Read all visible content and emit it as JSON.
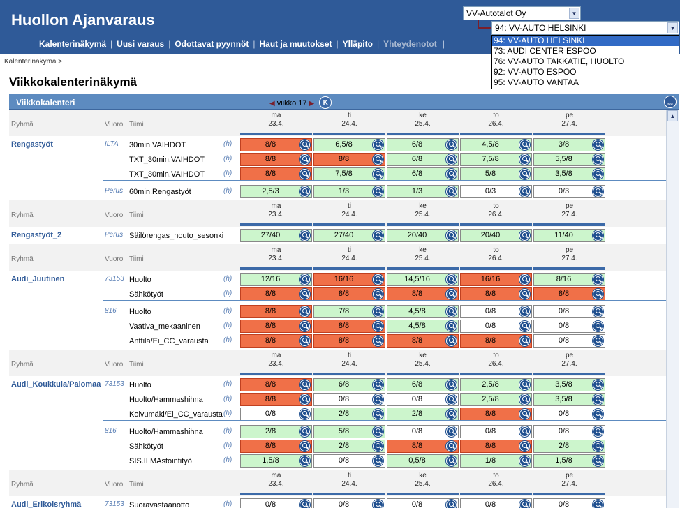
{
  "app": {
    "title": "Huollon Ajanvaraus"
  },
  "nav": {
    "items": [
      {
        "label": "Kalenterinäkymä",
        "dim": false
      },
      {
        "label": "Uusi varaus",
        "dim": false
      },
      {
        "label": "Odottavat pyynnöt",
        "dim": false
      },
      {
        "label": "Haut ja muutokset",
        "dim": false
      },
      {
        "label": "Ylläpito",
        "dim": false
      },
      {
        "label": "Yhteydenotot",
        "dim": true
      }
    ]
  },
  "company_select": {
    "value": "VV-Autotalot Oy"
  },
  "location_select": {
    "value": "94: VV-AUTO HELSINKI",
    "options": [
      "94: VV-AUTO HELSINKI",
      "73: AUDI CENTER ESPOO",
      "76: VV-AUTO TAKKATIE, HUOLTO",
      "92: VV-AUTO ESPOO",
      "95: VV-AUTO VANTAA"
    ]
  },
  "breadcrumb": "Kalenterinäkymä >",
  "page_title": "Viikkokalenterinäkymä",
  "calendar": {
    "title": "Viikkokalenteri",
    "week_label": "viikko 17",
    "k_button": "K"
  },
  "header_labels": {
    "group": "Ryhmä",
    "shift": "Vuoro",
    "team": "Tiimi"
  },
  "days": [
    {
      "day": "ma",
      "date": "23.4."
    },
    {
      "day": "ti",
      "date": "24.4."
    },
    {
      "day": "ke",
      "date": "25.4."
    },
    {
      "day": "to",
      "date": "26.4."
    },
    {
      "day": "pe",
      "date": "27.4."
    }
  ],
  "sections": [
    {
      "group": "Rengastyöt",
      "blocks": [
        {
          "shift": "ILTA",
          "rows": [
            {
              "team": "30min.VAIHDOT",
              "h": "(h)",
              "cells": [
                [
                  "8/8",
                  "r"
                ],
                [
                  "6,5/8",
                  "g"
                ],
                [
                  "6/8",
                  "g"
                ],
                [
                  "4,5/8",
                  "g"
                ],
                [
                  "3/8",
                  "g"
                ]
              ]
            },
            {
              "team": "TXT_30min.VAIHDOT",
              "h": "(h)",
              "cells": [
                [
                  "8/8",
                  "r"
                ],
                [
                  "8/8",
                  "r"
                ],
                [
                  "6/8",
                  "g"
                ],
                [
                  "7,5/8",
                  "g"
                ],
                [
                  "5,5/8",
                  "g"
                ]
              ]
            },
            {
              "team": "TXT_30min.VAIHDOT",
              "h": "(h)",
              "cells": [
                [
                  "8/8",
                  "r"
                ],
                [
                  "7,5/8",
                  "g"
                ],
                [
                  "6/8",
                  "g"
                ],
                [
                  "5/8",
                  "g"
                ],
                [
                  "3,5/8",
                  "g"
                ]
              ]
            }
          ]
        },
        {
          "shift": "Perus",
          "rows": [
            {
              "team": "60min.Rengastyöt",
              "h": "(h)",
              "cells": [
                [
                  "2,5/3",
                  "g"
                ],
                [
                  "1/3",
                  "g"
                ],
                [
                  "1/3",
                  "g"
                ],
                [
                  "0/3",
                  "w"
                ],
                [
                  "0/3",
                  "w"
                ]
              ]
            }
          ]
        }
      ]
    },
    {
      "group": "Rengastyöt_2",
      "blocks": [
        {
          "shift": "Perus",
          "rows": [
            {
              "team": "Säilörengas_nouto_sesonki",
              "h": "",
              "cells": [
                [
                  "27/40",
                  "g"
                ],
                [
                  "27/40",
                  "g"
                ],
                [
                  "20/40",
                  "g"
                ],
                [
                  "20/40",
                  "g"
                ],
                [
                  "11/40",
                  "g"
                ]
              ]
            }
          ]
        }
      ]
    },
    {
      "group": "Audi_Juutinen",
      "blocks": [
        {
          "shift": "73153",
          "rows": [
            {
              "team": "Huolto",
              "h": "(h)",
              "cells": [
                [
                  "12/16",
                  "g"
                ],
                [
                  "16/16",
                  "r"
                ],
                [
                  "14,5/16",
                  "g"
                ],
                [
                  "16/16",
                  "r"
                ],
                [
                  "8/16",
                  "g"
                ]
              ]
            },
            {
              "team": "Sähkötyöt",
              "h": "(h)",
              "cells": [
                [
                  "8/8",
                  "r"
                ],
                [
                  "8/8",
                  "r"
                ],
                [
                  "8/8",
                  "r"
                ],
                [
                  "8/8",
                  "r"
                ],
                [
                  "8/8",
                  "r"
                ]
              ]
            }
          ]
        },
        {
          "shift": "816",
          "rows": [
            {
              "team": "Huolto",
              "h": "(h)",
              "cells": [
                [
                  "8/8",
                  "r"
                ],
                [
                  "7/8",
                  "g"
                ],
                [
                  "4,5/8",
                  "g"
                ],
                [
                  "0/8",
                  "w"
                ],
                [
                  "0/8",
                  "w"
                ]
              ]
            },
            {
              "team": "Vaativa_mekaaninen",
              "h": "(h)",
              "cells": [
                [
                  "8/8",
                  "r"
                ],
                [
                  "8/8",
                  "r"
                ],
                [
                  "4,5/8",
                  "g"
                ],
                [
                  "0/8",
                  "w"
                ],
                [
                  "0/8",
                  "w"
                ]
              ]
            },
            {
              "team": "Anttila/Ei_CC_varausta",
              "h": "(h)",
              "cells": [
                [
                  "8/8",
                  "r"
                ],
                [
                  "8/8",
                  "r"
                ],
                [
                  "8/8",
                  "r"
                ],
                [
                  "8/8",
                  "r"
                ],
                [
                  "0/8",
                  "w"
                ]
              ]
            }
          ]
        }
      ]
    },
    {
      "group": "Audi_Koukkula/Palomaa",
      "blocks": [
        {
          "shift": "73153",
          "rows": [
            {
              "team": "Huolto",
              "h": "(h)",
              "cells": [
                [
                  "8/8",
                  "r"
                ],
                [
                  "6/8",
                  "g"
                ],
                [
                  "6/8",
                  "g"
                ],
                [
                  "2,5/8",
                  "g"
                ],
                [
                  "3,5/8",
                  "g"
                ]
              ]
            },
            {
              "team": "Huolto/Hammashihna",
              "h": "(h)",
              "cells": [
                [
                  "8/8",
                  "r"
                ],
                [
                  "0/8",
                  "w"
                ],
                [
                  "0/8",
                  "w"
                ],
                [
                  "2,5/8",
                  "g"
                ],
                [
                  "3,5/8",
                  "g"
                ]
              ]
            },
            {
              "team": "Koivumäki/Ei_CC_varausta",
              "h": "(h)",
              "cells": [
                [
                  "0/8",
                  "w"
                ],
                [
                  "2/8",
                  "g"
                ],
                [
                  "2/8",
                  "g"
                ],
                [
                  "8/8",
                  "r"
                ],
                [
                  "0/8",
                  "w"
                ]
              ]
            }
          ]
        },
        {
          "shift": "816",
          "rows": [
            {
              "team": "Huolto/Hammashihna",
              "h": "(h)",
              "cells": [
                [
                  "2/8",
                  "g"
                ],
                [
                  "5/8",
                  "g"
                ],
                [
                  "0/8",
                  "w"
                ],
                [
                  "0/8",
                  "w"
                ],
                [
                  "0/8",
                  "w"
                ]
              ]
            },
            {
              "team": "Sähkötyöt",
              "h": "(h)",
              "cells": [
                [
                  "8/8",
                  "r"
                ],
                [
                  "2/8",
                  "g"
                ],
                [
                  "8/8",
                  "r"
                ],
                [
                  "8/8",
                  "r"
                ],
                [
                  "2/8",
                  "g"
                ]
              ]
            },
            {
              "team": "SIS.ILMAstointityö",
              "h": "(h)",
              "cells": [
                [
                  "1,5/8",
                  "g"
                ],
                [
                  "0/8",
                  "w"
                ],
                [
                  "0,5/8",
                  "g"
                ],
                [
                  "1/8",
                  "g"
                ],
                [
                  "1,5/8",
                  "g"
                ]
              ]
            }
          ]
        }
      ]
    },
    {
      "group": "Audi_Erikoisryhmä",
      "blocks": [
        {
          "shift": "73153",
          "rows": [
            {
              "team": "Suoravastaanotto",
              "h": "(h)",
              "cells": [
                [
                  "0/8",
                  "w"
                ],
                [
                  "0/8",
                  "w"
                ],
                [
                  "0/8",
                  "w"
                ],
                [
                  "0/8",
                  "w"
                ],
                [
                  "0/8",
                  "w"
                ]
              ]
            }
          ]
        }
      ]
    }
  ]
}
